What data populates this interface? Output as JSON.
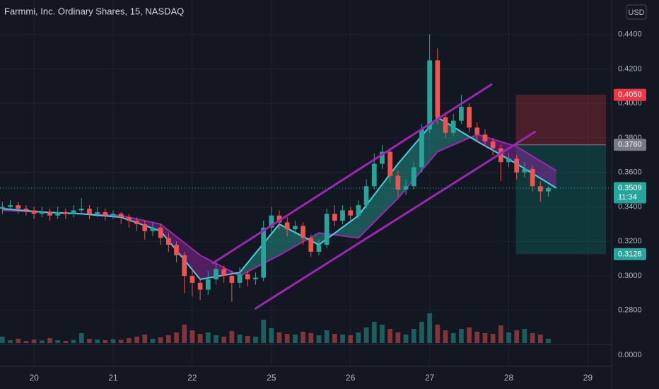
{
  "chart_data": {
    "type": "candlestick",
    "title": "Farmmi, Inc. Ordinary Shares, 15, NASDAQ",
    "currency": "USD",
    "xlim": [
      -0.43,
      7.3
    ],
    "xticks": [
      {
        "value": 0,
        "label": "20"
      },
      {
        "value": 1,
        "label": "21"
      },
      {
        "value": 2,
        "label": "22"
      },
      {
        "value": 3,
        "label": "25"
      },
      {
        "value": 4,
        "label": "26"
      },
      {
        "value": 5,
        "label": "27"
      },
      {
        "value": 6,
        "label": "28"
      },
      {
        "value": 7,
        "label": "29"
      }
    ],
    "ylim": [
      0.26,
      0.46
    ],
    "yticks": [
      {
        "value": 0.44,
        "label": "0.4400"
      },
      {
        "value": 0.42,
        "label": "0.4200"
      },
      {
        "value": 0.4,
        "label": "0.4000"
      },
      {
        "value": 0.38,
        "label": "0.3800"
      },
      {
        "value": 0.36,
        "label": "0.3600"
      },
      {
        "value": 0.34,
        "label": "0.3400"
      },
      {
        "value": 0.32,
        "label": "0.3200"
      },
      {
        "value": 0.3,
        "label": "0.3000"
      },
      {
        "value": 0.28,
        "label": "0.2800"
      }
    ],
    "y2ticks": [
      {
        "value": 0,
        "label": "0.0000"
      }
    ],
    "up_color": "#26a69a",
    "down_color": "#ef5350",
    "x": [
      -0.4,
      -0.3,
      -0.2,
      -0.1,
      0,
      0.1,
      0.2,
      0.3,
      0.4,
      0.5,
      0.6,
      0.7,
      0.8,
      0.9,
      1,
      1.1,
      1.2,
      1.3,
      1.4,
      1.5,
      1.6,
      1.7,
      1.8,
      1.9,
      2,
      2.1,
      2.2,
      2.3,
      2.4,
      2.5,
      2.6,
      2.7,
      2.8,
      2.9,
      3,
      3.1,
      3.2,
      3.3,
      3.4,
      3.5,
      3.6,
      3.7,
      3.8,
      3.9,
      4,
      4.1,
      4.2,
      4.3,
      4.4,
      4.5,
      4.6,
      4.7,
      4.8,
      4.9,
      5,
      5.1,
      5.2,
      5.3,
      5.4,
      5.5,
      5.6,
      5.7,
      5.8,
      5.9,
      6,
      6.1,
      6.2,
      6.3,
      6.4,
      6.5
    ],
    "open": [
      0.339,
      0.34,
      0.341,
      0.339,
      0.338,
      0.336,
      0.337,
      0.335,
      0.337,
      0.336,
      0.338,
      0.339,
      0.336,
      0.337,
      0.335,
      0.336,
      0.334,
      0.332,
      0.33,
      0.326,
      0.328,
      0.322,
      0.318,
      0.312,
      0.3,
      0.296,
      0.292,
      0.298,
      0.304,
      0.3,
      0.296,
      0.301,
      0.298,
      0.299,
      0.328,
      0.335,
      0.331,
      0.327,
      0.329,
      0.322,
      0.314,
      0.318,
      0.336,
      0.332,
      0.338,
      0.335,
      0.341,
      0.352,
      0.365,
      0.372,
      0.358,
      0.35,
      0.352,
      0.363,
      0.385,
      0.425,
      0.392,
      0.383,
      0.39,
      0.398,
      0.386,
      0.382,
      0.378,
      0.374,
      0.366,
      0.368,
      0.36,
      0.362,
      0.352,
      0.349
    ],
    "high": [
      0.343,
      0.344,
      0.343,
      0.341,
      0.34,
      0.34,
      0.339,
      0.34,
      0.339,
      0.341,
      0.345,
      0.341,
      0.34,
      0.339,
      0.338,
      0.337,
      0.336,
      0.334,
      0.332,
      0.331,
      0.33,
      0.325,
      0.32,
      0.314,
      0.304,
      0.299,
      0.303,
      0.308,
      0.306,
      0.303,
      0.305,
      0.303,
      0.302,
      0.332,
      0.34,
      0.338,
      0.334,
      0.332,
      0.331,
      0.324,
      0.321,
      0.339,
      0.341,
      0.341,
      0.34,
      0.344,
      0.356,
      0.371,
      0.376,
      0.374,
      0.361,
      0.356,
      0.366,
      0.388,
      0.44,
      0.432,
      0.395,
      0.394,
      0.405,
      0.4,
      0.389,
      0.385,
      0.38,
      0.376,
      0.371,
      0.37,
      0.366,
      0.364,
      0.355,
      0.352
    ],
    "low": [
      0.336,
      0.338,
      0.336,
      0.335,
      0.333,
      0.334,
      0.332,
      0.333,
      0.333,
      0.334,
      0.336,
      0.333,
      0.334,
      0.332,
      0.333,
      0.33,
      0.328,
      0.326,
      0.321,
      0.323,
      0.318,
      0.314,
      0.308,
      0.29,
      0.288,
      0.286,
      0.289,
      0.295,
      0.296,
      0.285,
      0.293,
      0.294,
      0.295,
      0.297,
      0.325,
      0.327,
      0.323,
      0.324,
      0.318,
      0.311,
      0.312,
      0.316,
      0.329,
      0.33,
      0.332,
      0.333,
      0.339,
      0.35,
      0.362,
      0.354,
      0.346,
      0.347,
      0.35,
      0.36,
      0.383,
      0.388,
      0.38,
      0.381,
      0.388,
      0.383,
      0.378,
      0.375,
      0.37,
      0.355,
      0.363,
      0.356,
      0.357,
      0.349,
      0.343,
      0.346
    ],
    "close": [
      0.34,
      0.341,
      0.339,
      0.338,
      0.336,
      0.337,
      0.335,
      0.337,
      0.336,
      0.338,
      0.339,
      0.336,
      0.337,
      0.335,
      0.336,
      0.334,
      0.332,
      0.33,
      0.326,
      0.328,
      0.322,
      0.318,
      0.312,
      0.3,
      0.296,
      0.292,
      0.298,
      0.304,
      0.3,
      0.296,
      0.301,
      0.298,
      0.299,
      0.328,
      0.335,
      0.331,
      0.327,
      0.329,
      0.322,
      0.314,
      0.318,
      0.336,
      0.332,
      0.338,
      0.335,
      0.341,
      0.352,
      0.365,
      0.372,
      0.358,
      0.35,
      0.352,
      0.363,
      0.385,
      0.425,
      0.392,
      0.383,
      0.39,
      0.398,
      0.386,
      0.382,
      0.378,
      0.374,
      0.366,
      0.368,
      0.36,
      0.362,
      0.352,
      0.349,
      0.3509
    ],
    "volume": [
      90,
      40,
      60,
      30,
      50,
      35,
      70,
      40,
      30,
      45,
      140,
      60,
      50,
      40,
      55,
      45,
      70,
      90,
      120,
      60,
      80,
      110,
      150,
      260,
      180,
      130,
      150,
      110,
      90,
      170,
      120,
      100,
      90,
      330,
      210,
      150,
      130,
      120,
      160,
      140,
      110,
      180,
      130,
      120,
      110,
      150,
      220,
      300,
      260,
      200,
      150,
      120,
      200,
      300,
      420,
      260,
      180,
      140,
      200,
      220,
      160,
      140,
      130,
      250,
      150,
      180,
      200,
      140,
      120,
      60
    ],
    "volume_lim": [
      0,
      1300
    ],
    "cloud_x": [
      -0.4,
      0.1,
      0.6,
      1.1,
      1.6,
      2.1,
      2.6,
      3.1,
      3.6,
      4.1,
      4.6,
      5.1,
      5.6,
      6.1,
      6.6
    ],
    "cloud_fast": [
      0.339,
      0.337,
      0.336,
      0.334,
      0.326,
      0.298,
      0.302,
      0.33,
      0.318,
      0.335,
      0.365,
      0.392,
      0.378,
      0.365,
      0.351
    ],
    "cloud_slow": [
      0.338,
      0.337,
      0.336,
      0.335,
      0.33,
      0.312,
      0.3,
      0.312,
      0.325,
      0.322,
      0.345,
      0.372,
      0.382,
      0.375,
      0.361
    ],
    "cloud_up_color": "#26a69a",
    "cloud_down_color": "#9c27b0",
    "channel": {
      "color": "#9c27b0",
      "upper": {
        "x": [
          2.25,
          5.79
        ],
        "y": [
          0.3071,
          0.4113
        ]
      },
      "lower": {
        "x": [
          2.79,
          6.34
        ],
        "y": [
          0.2808,
          0.3838
        ]
      }
    },
    "position": {
      "x": [
        6.09,
        7.23
      ],
      "stop": 0.405,
      "entry": 0.376,
      "target": 0.3126
    },
    "price_labels": [
      {
        "value": 0.405,
        "label": "0.4050",
        "color": "#f23645"
      },
      {
        "value": 0.376,
        "label": "0.3760",
        "color": "#787b86"
      },
      {
        "value": 0.3509,
        "label": "0.3509",
        "color": "#26a69a",
        "sub": "11:34"
      },
      {
        "value": 0.3126,
        "label": "0.3126",
        "color": "#26a69a"
      }
    ]
  }
}
